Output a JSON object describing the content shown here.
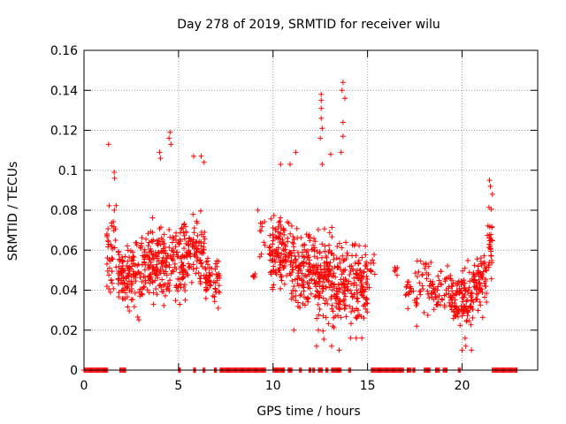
{
  "chart_data": {
    "type": "scatter",
    "title": "Day 278 of 2019, SRMTID for receiver wilu",
    "xlabel": "GPS time / hours",
    "ylabel": "SRMTID / TECUs",
    "xlim": [
      0,
      24
    ],
    "ylim": [
      0,
      0.16
    ],
    "x_ticks": [
      0,
      5,
      10,
      15,
      20
    ],
    "x_tick_labels": [
      "0",
      "5",
      "10",
      "15",
      "20"
    ],
    "y_ticks": [
      0,
      0.02,
      0.04,
      0.06,
      0.08,
      0.1,
      0.12,
      0.14,
      0.16
    ],
    "y_tick_labels": [
      "0",
      "0.02",
      "0.04",
      "0.06",
      "0.08",
      "0.1",
      "0.12",
      "0.14",
      "0.16"
    ],
    "grid": true,
    "marker": "plus",
    "color": "#ff0000",
    "zero_segments": [
      [
        0.0,
        1.25
      ],
      [
        1.9,
        2.2
      ],
      [
        5.0,
        5.1
      ],
      [
        5.8,
        5.9
      ],
      [
        6.3,
        6.4
      ],
      [
        6.9,
        7.0
      ],
      [
        7.2,
        9.6
      ],
      [
        10.0,
        10.6
      ],
      [
        10.8,
        11.0
      ],
      [
        11.4,
        11.5
      ],
      [
        11.9,
        12.0
      ],
      [
        12.1,
        12.2
      ],
      [
        12.4,
        12.6
      ],
      [
        12.8,
        12.9
      ],
      [
        13.1,
        13.6
      ],
      [
        14.0,
        14.1
      ],
      [
        15.2,
        16.9
      ],
      [
        17.1,
        17.3
      ],
      [
        17.4,
        17.5
      ],
      [
        18.0,
        18.3
      ],
      [
        18.6,
        18.8
      ],
      [
        19.0,
        19.2
      ],
      [
        19.8,
        19.9
      ],
      [
        21.6,
        22.9
      ]
    ],
    "clusters": [
      {
        "x_range": [
          1.2,
          1.7
        ],
        "y_center": 0.06,
        "y_spread": 0.022,
        "count": 40
      },
      {
        "x_range": [
          1.8,
          3.0
        ],
        "y_center": 0.047,
        "y_spread": 0.014,
        "count": 120
      },
      {
        "x_range": [
          3.0,
          5.5
        ],
        "y_center": 0.055,
        "y_spread": 0.016,
        "count": 260
      },
      {
        "x_range": [
          5.5,
          6.4
        ],
        "y_center": 0.06,
        "y_spread": 0.016,
        "count": 80
      },
      {
        "x_range": [
          6.4,
          7.2
        ],
        "y_center": 0.045,
        "y_spread": 0.01,
        "count": 60
      },
      {
        "x_range": [
          8.9,
          9.1
        ],
        "y_center": 0.047,
        "y_spread": 0.003,
        "count": 5
      },
      {
        "x_range": [
          9.3,
          9.6
        ],
        "y_center": 0.068,
        "y_spread": 0.012,
        "count": 10
      },
      {
        "x_range": [
          9.8,
          11.0
        ],
        "y_center": 0.058,
        "y_spread": 0.015,
        "count": 130
      },
      {
        "x_range": [
          11.0,
          12.4
        ],
        "y_center": 0.05,
        "y_spread": 0.016,
        "count": 150
      },
      {
        "x_range": [
          12.4,
          13.3
        ],
        "y_center": 0.045,
        "y_spread": 0.018,
        "count": 110
      },
      {
        "x_range": [
          13.3,
          15.0
        ],
        "y_center": 0.043,
        "y_spread": 0.016,
        "count": 180
      },
      {
        "x_range": [
          15.0,
          15.4
        ],
        "y_center": 0.05,
        "y_spread": 0.008,
        "count": 10
      },
      {
        "x_range": [
          16.4,
          16.6
        ],
        "y_center": 0.05,
        "y_spread": 0.005,
        "count": 6
      },
      {
        "x_range": [
          17.0,
          17.4
        ],
        "y_center": 0.04,
        "y_spread": 0.008,
        "count": 15
      },
      {
        "x_range": [
          17.4,
          18.4
        ],
        "y_center": 0.045,
        "y_spread": 0.012,
        "count": 40
      },
      {
        "x_range": [
          18.4,
          19.5
        ],
        "y_center": 0.04,
        "y_spread": 0.01,
        "count": 60
      },
      {
        "x_range": [
          19.5,
          20.6
        ],
        "y_center": 0.035,
        "y_spread": 0.013,
        "count": 110
      },
      {
        "x_range": [
          20.6,
          21.3
        ],
        "y_center": 0.045,
        "y_spread": 0.012,
        "count": 70
      },
      {
        "x_range": [
          21.3,
          21.6
        ],
        "y_center": 0.065,
        "y_spread": 0.015,
        "count": 30
      }
    ],
    "outliers": [
      [
        1.3,
        0.113
      ],
      [
        1.6,
        0.099
      ],
      [
        1.62,
        0.096
      ],
      [
        4.0,
        0.109
      ],
      [
        4.05,
        0.106
      ],
      [
        4.55,
        0.119
      ],
      [
        4.5,
        0.116
      ],
      [
        4.6,
        0.113
      ],
      [
        5.8,
        0.107
      ],
      [
        6.2,
        0.107
      ],
      [
        6.35,
        0.104
      ],
      [
        11.2,
        0.109
      ],
      [
        12.55,
        0.138
      ],
      [
        12.55,
        0.135
      ],
      [
        12.55,
        0.131
      ],
      [
        12.55,
        0.126
      ],
      [
        12.6,
        0.121
      ],
      [
        12.5,
        0.116
      ],
      [
        13.7,
        0.144
      ],
      [
        13.65,
        0.14
      ],
      [
        13.8,
        0.136
      ],
      [
        13.7,
        0.124
      ],
      [
        13.7,
        0.117
      ],
      [
        13.6,
        0.109
      ],
      [
        13.05,
        0.108
      ],
      [
        12.6,
        0.103
      ],
      [
        10.9,
        0.103
      ],
      [
        10.4,
        0.103
      ],
      [
        21.45,
        0.095
      ],
      [
        21.5,
        0.092
      ],
      [
        21.6,
        0.088
      ],
      [
        12.3,
        0.012
      ],
      [
        12.4,
        0.02
      ],
      [
        13.1,
        0.012
      ],
      [
        13.5,
        0.01
      ],
      [
        14.4,
        0.016
      ],
      [
        20.0,
        0.01
      ],
      [
        20.5,
        0.01
      ],
      [
        20.2,
        0.012
      ],
      [
        11.1,
        0.02
      ],
      [
        14.1,
        0.016
      ],
      [
        14.7,
        0.016
      ],
      [
        17.6,
        0.022
      ],
      [
        9.2,
        0.08
      ]
    ]
  }
}
